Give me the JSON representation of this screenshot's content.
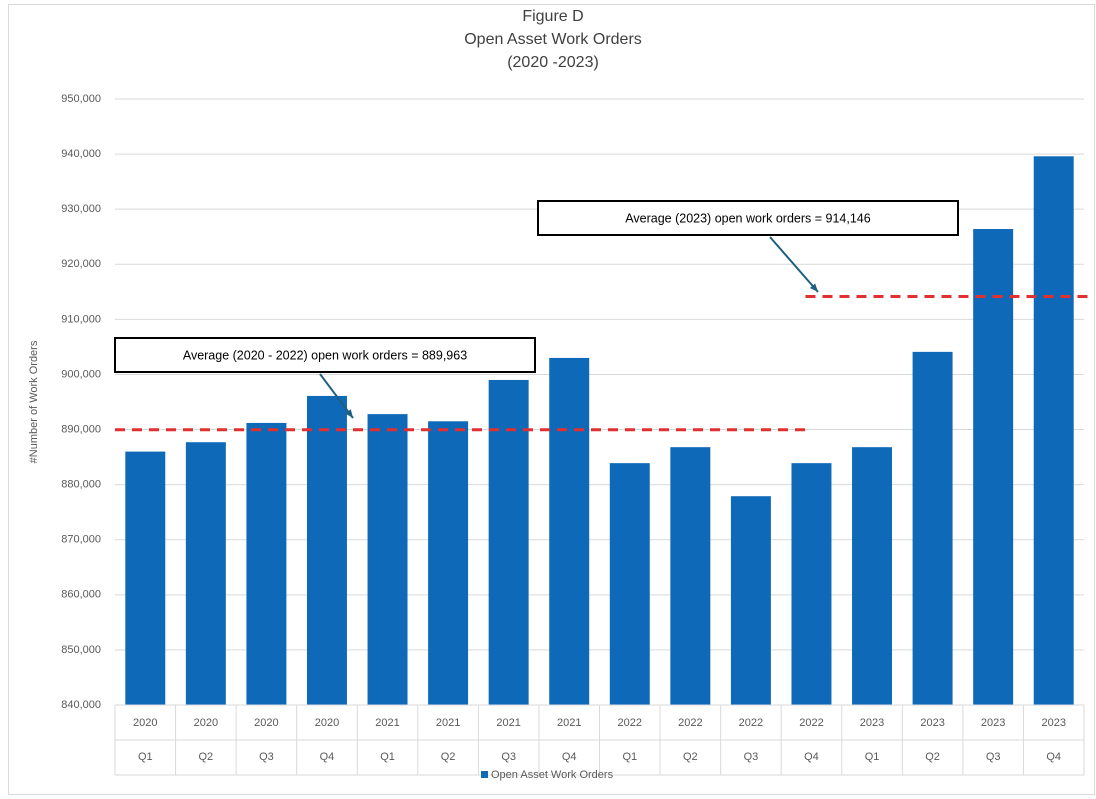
{
  "chart_data": {
    "type": "bar",
    "title": [
      "Figure D",
      "Open Asset  Work Orders",
      "(2020 -2023)"
    ],
    "y_label": "#Number of Work Orders",
    "categories": [
      {
        "year": "2020",
        "quarter": "Q1"
      },
      {
        "year": "2020",
        "quarter": "Q2"
      },
      {
        "year": "2020",
        "quarter": "Q3"
      },
      {
        "year": "2020",
        "quarter": "Q4"
      },
      {
        "year": "2021",
        "quarter": "Q1"
      },
      {
        "year": "2021",
        "quarter": "Q2"
      },
      {
        "year": "2021",
        "quarter": "Q3"
      },
      {
        "year": "2021",
        "quarter": "Q4"
      },
      {
        "year": "2022",
        "quarter": "Q1"
      },
      {
        "year": "2022",
        "quarter": "Q2"
      },
      {
        "year": "2022",
        "quarter": "Q3"
      },
      {
        "year": "2022",
        "quarter": "Q4"
      },
      {
        "year": "2023",
        "quarter": "Q1"
      },
      {
        "year": "2023",
        "quarter": "Q2"
      },
      {
        "year": "2023",
        "quarter": "Q3"
      },
      {
        "year": "2023",
        "quarter": "Q4"
      }
    ],
    "series": [
      {
        "name": "Open Asset Work Orders",
        "color": "#0f69b9",
        "values": [
          886000,
          887700,
          891200,
          896100,
          892800,
          891500,
          899000,
          903000,
          883900,
          886800,
          877900,
          883900,
          886800,
          904100,
          926400,
          939600
        ]
      }
    ],
    "ylim": [
      840000,
      950000
    ],
    "yticks": [
      {
        "value": 840000,
        "label": "840,000"
      },
      {
        "value": 850000,
        "label": "850,000"
      },
      {
        "value": 860000,
        "label": "860,000"
      },
      {
        "value": 870000,
        "label": "870,000"
      },
      {
        "value": 880000,
        "label": "880,000"
      },
      {
        "value": 890000,
        "label": "890,000"
      },
      {
        "value": 900000,
        "label": "900,000"
      },
      {
        "value": 910000,
        "label": "910,000"
      },
      {
        "value": 920000,
        "label": "920,000"
      },
      {
        "value": 930000,
        "label": "930,000"
      },
      {
        "value": 940000,
        "label": "940,000"
      },
      {
        "value": 950000,
        "label": "950,000"
      }
    ],
    "grid": true,
    "legend": "bottom",
    "annotations": [
      {
        "text": "Average (2020 - 2022)  open work orders  = 889,963",
        "value": 889963,
        "color": "#e0302f"
      },
      {
        "text": "Average (2023)  open work orders  = 914,146",
        "value": 914146,
        "color": "#e0302f"
      }
    ]
  }
}
